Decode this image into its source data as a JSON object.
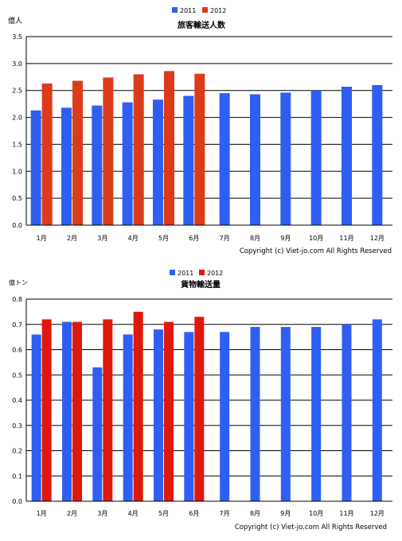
{
  "chart_data": [
    {
      "type": "bar",
      "title": "旅客輸送人数",
      "unit": "億人",
      "categories": [
        "1月",
        "2月",
        "3月",
        "4月",
        "5月",
        "6月",
        "7月",
        "8月",
        "9月",
        "10月",
        "11月",
        "12月"
      ],
      "series": [
        {
          "name": "2011",
          "color": "#2f5ff2",
          "values": [
            2.13,
            2.18,
            2.22,
            2.28,
            2.33,
            2.4,
            2.45,
            2.43,
            2.46,
            2.5,
            2.57,
            2.6
          ]
        },
        {
          "name": "2012",
          "color": "#dd3a1a",
          "values": [
            2.63,
            2.68,
            2.74,
            2.8,
            2.86,
            2.81,
            null,
            null,
            null,
            null,
            null,
            null
          ]
        }
      ],
      "yticks": [
        "0.0",
        "0.5",
        "1.0",
        "1.5",
        "2.0",
        "2.5",
        "3.0",
        "3.5"
      ],
      "ylim": [
        0,
        3.5
      ],
      "grid": true,
      "legend": "top-center",
      "copyright": "Copyright (c) Viet-jo.com All Rights Reserved"
    },
    {
      "type": "bar",
      "title": "貨物輸送量",
      "unit": "億トン",
      "categories": [
        "1月",
        "2月",
        "3月",
        "4月",
        "5月",
        "6月",
        "7月",
        "8月",
        "9月",
        "10月",
        "11月",
        "12月"
      ],
      "series": [
        {
          "name": "2011",
          "color": "#2f5ff2",
          "values": [
            0.66,
            0.71,
            0.53,
            0.66,
            0.68,
            0.67,
            0.67,
            0.69,
            0.69,
            0.69,
            0.7,
            0.72
          ]
        },
        {
          "name": "2012",
          "color": "#e0180c",
          "values": [
            0.72,
            0.71,
            0.72,
            0.75,
            0.71,
            0.73,
            null,
            null,
            null,
            null,
            null,
            null
          ]
        }
      ],
      "yticks": [
        "0.0",
        "0.1",
        "0.2",
        "0.3",
        "0.4",
        "0.5",
        "0.6",
        "0.7",
        "0.8"
      ],
      "ylim": [
        0,
        0.8
      ],
      "grid": true,
      "legend": "top-center",
      "copyright": "Copyright (c) Viet-jo.com All Rights Reserved"
    }
  ]
}
